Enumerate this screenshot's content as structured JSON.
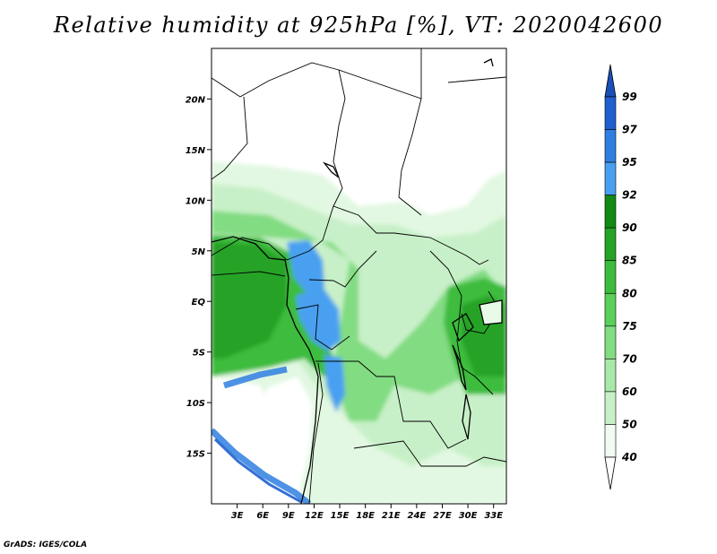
{
  "title": "Relative humidity at 925hPa [%], VT: 2020042600",
  "credit": "GrADS: IGES/COLA",
  "map": {
    "lon_range": [
      0,
      34.5
    ],
    "lat_range": [
      -20,
      25
    ],
    "lat_ticks": [
      {
        "value": 20,
        "label": "20N"
      },
      {
        "value": 15,
        "label": "15N"
      },
      {
        "value": 10,
        "label": "10N"
      },
      {
        "value": 5,
        "label": "5N"
      },
      {
        "value": 0,
        "label": "EQ"
      },
      {
        "value": -5,
        "label": "5S"
      },
      {
        "value": -10,
        "label": "10S"
      },
      {
        "value": -15,
        "label": "15S"
      }
    ],
    "lon_ticks": [
      {
        "value": 3,
        "label": "3E"
      },
      {
        "value": 6,
        "label": "6E"
      },
      {
        "value": 9,
        "label": "9E"
      },
      {
        "value": 12,
        "label": "12E"
      },
      {
        "value": 15,
        "label": "15E"
      },
      {
        "value": 18,
        "label": "18E"
      },
      {
        "value": 21,
        "label": "21E"
      },
      {
        "value": 24,
        "label": "24E"
      },
      {
        "value": 27,
        "label": "27E"
      },
      {
        "value": 30,
        "label": "30E"
      },
      {
        "value": 33,
        "label": "33E"
      }
    ]
  },
  "colorbar": {
    "levels": [
      {
        "label": "99",
        "color": "#1f5fcf"
      },
      {
        "label": "97",
        "color": "#2f7fe0"
      },
      {
        "label": "95",
        "color": "#4aa0f0"
      },
      {
        "label": "92",
        "color": "#138a13"
      },
      {
        "label": "90",
        "color": "#25a325"
      },
      {
        "label": "85",
        "color": "#3cbc3c"
      },
      {
        "label": "80",
        "color": "#5ad05a"
      },
      {
        "label": "75",
        "color": "#82dc82"
      },
      {
        "label": "70",
        "color": "#a8e8a8"
      },
      {
        "label": "60",
        "color": "#c8f0c8"
      },
      {
        "label": "50",
        "color": "#e2f8e2"
      },
      {
        "label": "40",
        "color": "#ffffff"
      }
    ],
    "top_arrow_color": "#1a4fb8",
    "bottom_arrow_color": "#ffffff"
  }
}
